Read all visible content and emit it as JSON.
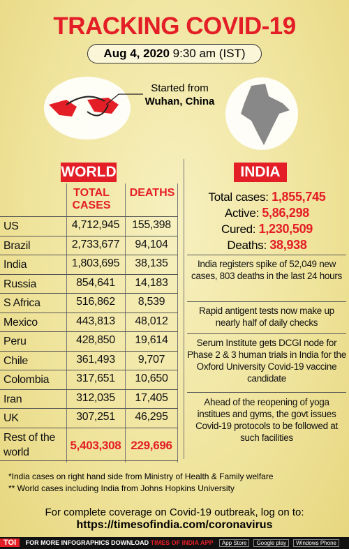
{
  "header": {
    "title": "TRACKING COVID-19",
    "date": "Aug 4, 2020",
    "time": "9:30 am (IST)"
  },
  "origin": {
    "line1": "Started from",
    "line2": "Wuhan, China"
  },
  "world": {
    "title": "WORLD",
    "columns": [
      "TOTAL CASES",
      "DEATHS"
    ],
    "rows": [
      [
        "US",
        "4,712,945",
        "155,398"
      ],
      [
        "Brazil",
        "2,733,677",
        "94,104"
      ],
      [
        "India",
        "1,803,695",
        "38,135"
      ],
      [
        "Russia",
        "854,641",
        "14,183"
      ],
      [
        "S Africa",
        "516,862",
        "8,539"
      ],
      [
        "Mexico",
        "443,813",
        "48,012"
      ],
      [
        "Peru",
        "428,850",
        "19,614"
      ],
      [
        "Chile",
        "361,493",
        "9,707"
      ],
      [
        "Colombia",
        "317,651",
        "10,650"
      ],
      [
        "Iran",
        "312,035",
        "17,405"
      ],
      [
        "UK",
        "307,251",
        "46,295"
      ],
      [
        "Rest of the world",
        "5,403,308",
        "229,696"
      ]
    ]
  },
  "india": {
    "title": "INDIA",
    "stats": [
      {
        "label": "Total cases:",
        "value": "1,855,745"
      },
      {
        "label": "Active:",
        "value": "5,86,298"
      },
      {
        "label": "Cured:",
        "value": "1,230,509"
      },
      {
        "label": "Deaths:",
        "value": "38,938"
      }
    ],
    "news": [
      "India registers spike of 52,049 new cases, 803 deaths in the last 24 hours",
      "Rapid antigent tests now make up nearly half of daily checks",
      "Serum Institute gets DCGI node for Phase 2 & 3 human trials in India for the Oxford University Covid-19 vaccine candidate",
      "Ahead of the reopening of yoga institues and gyms, the govt issues Covid-19 protocols to be followed at such facilities"
    ]
  },
  "footnotes": [
    "*India cases on right hand side from Ministry of Health & Family welfare",
    "** World cases including India from Johns Hopkins University"
  ],
  "footer": {
    "line1": "For complete coverage on Covid-19 outbreak, log on to:",
    "url": "https://timesofindia.com/coronavirus"
  },
  "bottom_bar": {
    "logo": "TOI",
    "text": "FOR MORE  INFOGRAPHICS DOWNLOAD",
    "app": "TIMES OF INDIA  APP",
    "badges": [
      "App Store",
      "Google play",
      "Windows Phone"
    ]
  }
}
